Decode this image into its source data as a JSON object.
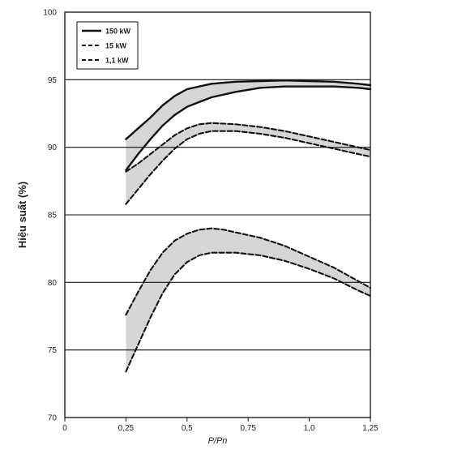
{
  "chart_data": {
    "type": "area",
    "title": "",
    "xlabel": "P/Pn",
    "ylabel": "Hiệu suất (%)",
    "xlim": [
      0,
      1.25
    ],
    "ylim": [
      70,
      100
    ],
    "x_ticks": [
      {
        "value": 0,
        "label": "0"
      },
      {
        "value": 0.25,
        "label": "0,25"
      },
      {
        "value": 0.5,
        "label": "0,5"
      },
      {
        "value": 0.75,
        "label": "0,75"
      },
      {
        "value": 1.0,
        "label": "1,0"
      },
      {
        "value": 1.25,
        "label": "1,25"
      }
    ],
    "y_ticks": [
      {
        "value": 70,
        "label": "70"
      },
      {
        "value": 75,
        "label": "75"
      },
      {
        "value": 80,
        "label": "80"
      },
      {
        "value": 85,
        "label": "85"
      },
      {
        "value": 90,
        "label": "90"
      },
      {
        "value": 95,
        "label": "95"
      },
      {
        "value": 100,
        "label": "100"
      }
    ],
    "grid": "horizontal gridlines at 75, 80, 85, 90, 95",
    "legend_position": "top-left",
    "fill_color": "#d6d6d6",
    "line_color": "#111111",
    "series": [
      {
        "name": "150 kW",
        "line_style": "solid",
        "upper": [
          [
            0.25,
            90.6
          ],
          [
            0.3,
            91.4
          ],
          [
            0.35,
            92.2
          ],
          [
            0.4,
            93.1
          ],
          [
            0.45,
            93.8
          ],
          [
            0.5,
            94.3
          ],
          [
            0.6,
            94.7
          ],
          [
            0.7,
            94.85
          ],
          [
            0.8,
            94.9
          ],
          [
            0.9,
            94.95
          ],
          [
            1.0,
            94.9
          ],
          [
            1.1,
            94.85
          ],
          [
            1.2,
            94.7
          ],
          [
            1.25,
            94.6
          ]
        ],
        "lower": [
          [
            0.25,
            88.3
          ],
          [
            0.3,
            89.5
          ],
          [
            0.35,
            90.6
          ],
          [
            0.4,
            91.6
          ],
          [
            0.45,
            92.4
          ],
          [
            0.5,
            93.0
          ],
          [
            0.6,
            93.7
          ],
          [
            0.7,
            94.1
          ],
          [
            0.8,
            94.4
          ],
          [
            0.9,
            94.5
          ],
          [
            1.0,
            94.5
          ],
          [
            1.1,
            94.5
          ],
          [
            1.2,
            94.4
          ],
          [
            1.25,
            94.3
          ]
        ]
      },
      {
        "name": "15 kW",
        "line_style": "dashed",
        "upper": [
          [
            0.25,
            88.2
          ],
          [
            0.3,
            88.8
          ],
          [
            0.35,
            89.5
          ],
          [
            0.4,
            90.2
          ],
          [
            0.45,
            90.9
          ],
          [
            0.5,
            91.4
          ],
          [
            0.55,
            91.7
          ],
          [
            0.6,
            91.8
          ],
          [
            0.7,
            91.7
          ],
          [
            0.8,
            91.5
          ],
          [
            0.9,
            91.2
          ],
          [
            1.0,
            90.8
          ],
          [
            1.1,
            90.4
          ],
          [
            1.2,
            90.0
          ],
          [
            1.25,
            89.8
          ]
        ],
        "lower": [
          [
            0.25,
            85.8
          ],
          [
            0.3,
            86.9
          ],
          [
            0.35,
            88.0
          ],
          [
            0.4,
            89.0
          ],
          [
            0.45,
            89.9
          ],
          [
            0.5,
            90.6
          ],
          [
            0.55,
            91.0
          ],
          [
            0.6,
            91.2
          ],
          [
            0.7,
            91.2
          ],
          [
            0.8,
            91.0
          ],
          [
            0.9,
            90.7
          ],
          [
            1.0,
            90.3
          ],
          [
            1.1,
            89.9
          ],
          [
            1.2,
            89.5
          ],
          [
            1.25,
            89.3
          ]
        ]
      },
      {
        "name": "1,1 kW",
        "line_style": "dashed",
        "upper": [
          [
            0.25,
            77.6
          ],
          [
            0.3,
            79.3
          ],
          [
            0.35,
            80.9
          ],
          [
            0.4,
            82.2
          ],
          [
            0.45,
            83.1
          ],
          [
            0.5,
            83.6
          ],
          [
            0.55,
            83.9
          ],
          [
            0.6,
            84.0
          ],
          [
            0.65,
            83.9
          ],
          [
            0.7,
            83.7
          ],
          [
            0.8,
            83.3
          ],
          [
            0.9,
            82.7
          ],
          [
            1.0,
            81.9
          ],
          [
            1.1,
            81.1
          ],
          [
            1.2,
            80.1
          ],
          [
            1.25,
            79.6
          ]
        ],
        "lower": [
          [
            0.25,
            73.4
          ],
          [
            0.3,
            75.4
          ],
          [
            0.35,
            77.4
          ],
          [
            0.4,
            79.2
          ],
          [
            0.45,
            80.6
          ],
          [
            0.5,
            81.5
          ],
          [
            0.55,
            82.0
          ],
          [
            0.6,
            82.2
          ],
          [
            0.7,
            82.2
          ],
          [
            0.8,
            82.0
          ],
          [
            0.9,
            81.6
          ],
          [
            1.0,
            81.0
          ],
          [
            1.1,
            80.3
          ],
          [
            1.2,
            79.4
          ],
          [
            1.25,
            79.0
          ]
        ]
      }
    ]
  }
}
